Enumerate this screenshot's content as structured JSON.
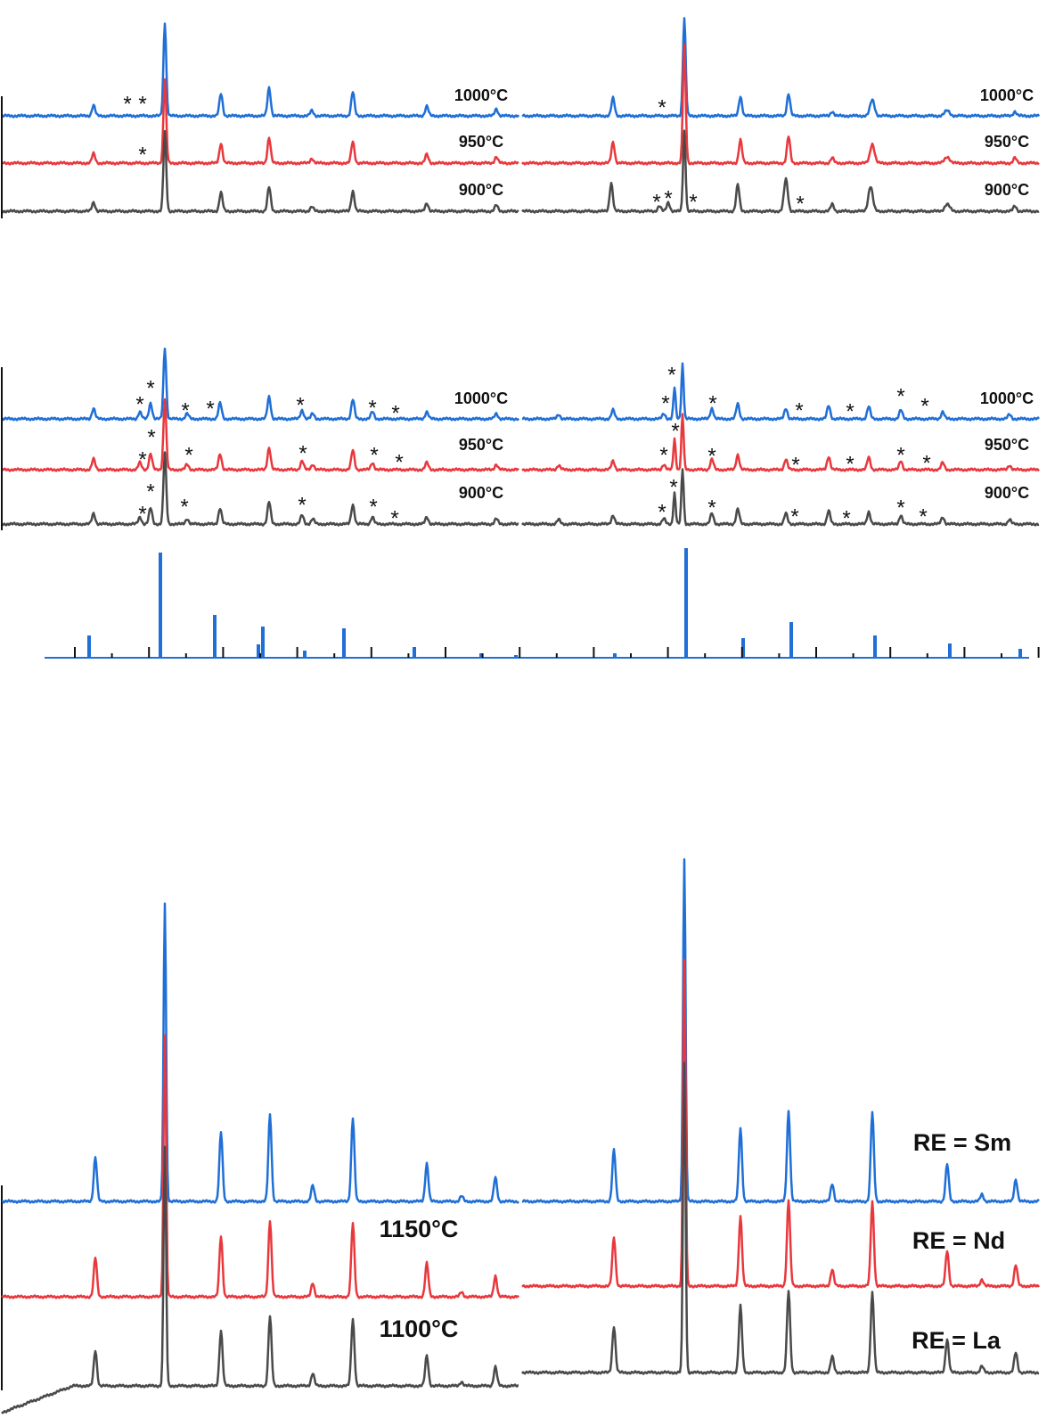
{
  "top": {
    "labels": [
      "1000°C",
      "950°C",
      "900°C",
      "1000°C",
      "950°C",
      "900°C"
    ],
    "markers": [
      "*",
      "*",
      "*",
      "*",
      "*",
      "*",
      "*",
      "*"
    ]
  },
  "middle": {
    "labels": [
      "1000°C",
      "950°C",
      "900°C",
      "1000°C",
      "950°C",
      "900°C"
    ],
    "markers": [
      "*",
      "*",
      "*",
      "*",
      "*",
      "*",
      "*",
      "*",
      "*",
      "*",
      "*",
      "*",
      "*",
      "*",
      "*",
      "*",
      "*",
      "*",
      "*",
      "*",
      "*",
      "*",
      "*",
      "*",
      "*",
      "*",
      "*",
      "*",
      "*",
      "*",
      "*",
      "*",
      "*",
      "*",
      "*",
      "*",
      "*",
      "*",
      "*",
      "*"
    ]
  },
  "bottom": {
    "labels": [
      "1150°C",
      "1100°C"
    ],
    "series_labels": [
      "RE = Sm",
      "RE = Nd",
      "RE = La"
    ]
  }
}
